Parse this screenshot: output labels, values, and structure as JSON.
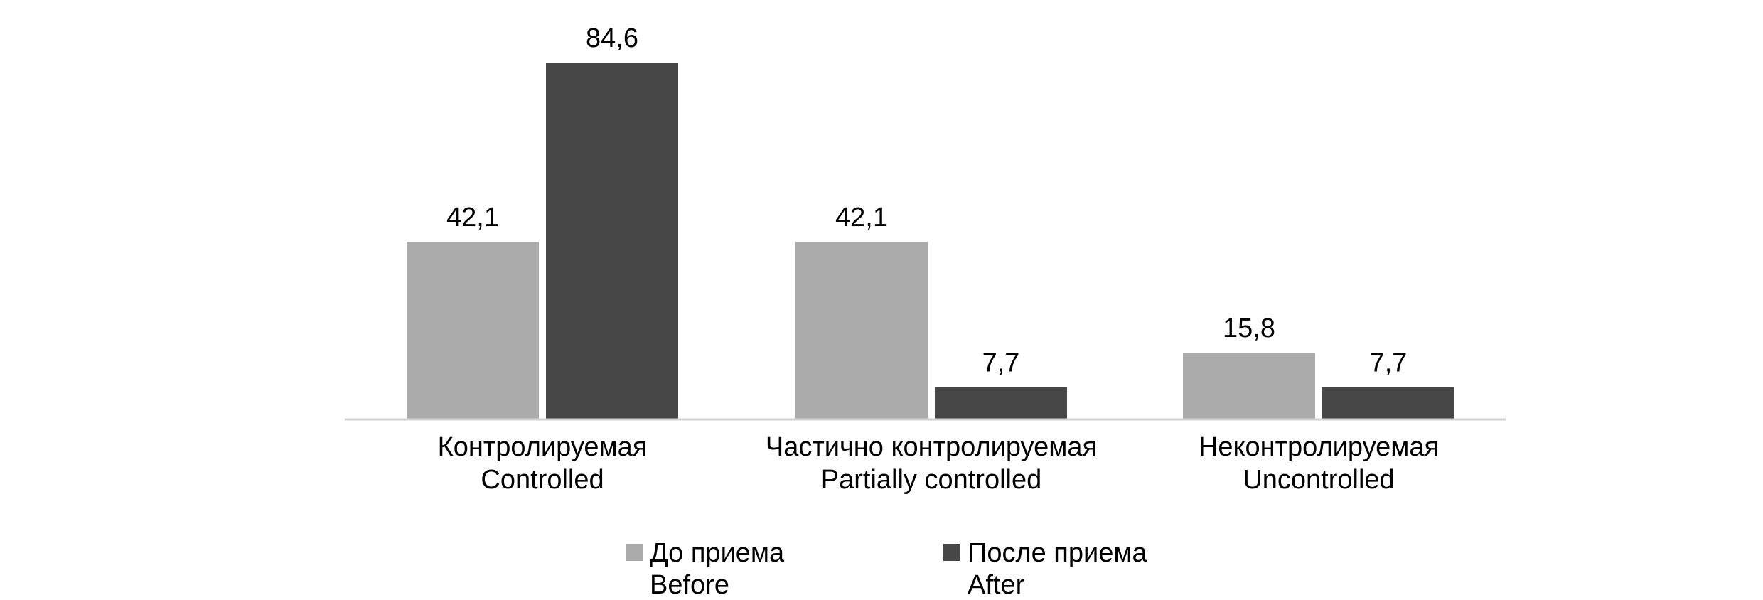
{
  "chart_data": {
    "type": "bar",
    "categories": [
      {
        "ru": "Контролируемая",
        "en": "Controlled"
      },
      {
        "ru": "Частично контролируемая",
        "en": "Partially controlled"
      },
      {
        "ru": "Неконтролируемая",
        "en": "Uncontrolled"
      }
    ],
    "series": [
      {
        "name_ru": "До приема",
        "name_en": "Before",
        "color": "#ababab",
        "values": [
          42.1,
          42.1,
          15.8
        ],
        "labels": [
          "42,1",
          "42,1",
          "15,8"
        ]
      },
      {
        "name_ru": "После приема",
        "name_en": "After",
        "color": "#474747",
        "values": [
          84.6,
          7.7,
          7.7
        ],
        "labels": [
          "84,6",
          "7,7",
          "7,7"
        ]
      }
    ],
    "ylim": [
      0,
      84.6
    ],
    "grid": false,
    "legend_position": "bottom"
  }
}
